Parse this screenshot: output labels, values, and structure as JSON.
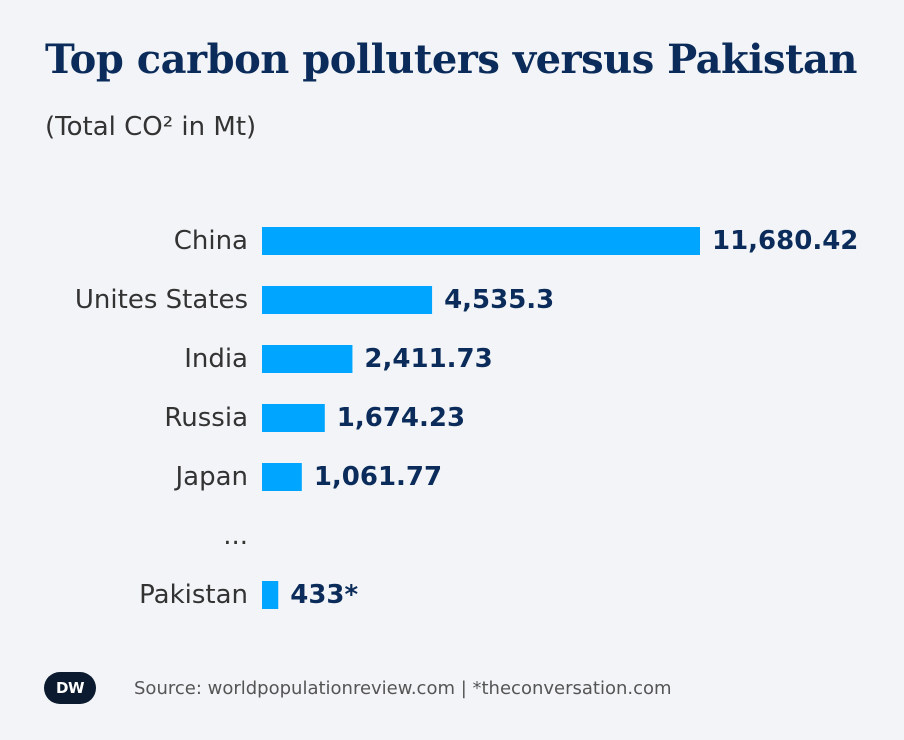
{
  "chart_data": {
    "type": "bar",
    "orientation": "horizontal",
    "title": "Top carbon polluters versus Pakistan",
    "subtitle": "(Total CO² in Mt)",
    "categories": [
      "China",
      "Unites States",
      "India",
      "Russia",
      "Japan",
      "Pakistan"
    ],
    "values": [
      11680.42,
      4535.3,
      2411.73,
      1674.23,
      1061.77,
      433
    ],
    "value_labels": [
      "11,680.42",
      "4,535.3",
      "2,411.73",
      "1,674.23",
      "1,061.77",
      "433*"
    ],
    "gap_label": "...",
    "gap_before_index": 5,
    "xlim": [
      0,
      11680.42
    ],
    "grid": false,
    "legend": "none",
    "bar_color": "#00a5ff"
  },
  "colors": {
    "title": "#0b2c5a",
    "value_label": "#0b2c5a",
    "background": "#f2f4f7"
  },
  "footer": {
    "logo_text": "DW",
    "source": "Source: worldpopulationreview.com | *theconversation.com"
  }
}
